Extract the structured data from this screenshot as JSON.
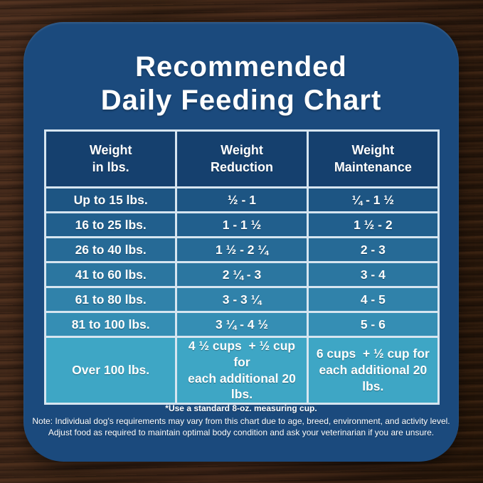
{
  "title": {
    "line1": "Recommended",
    "line2": "Daily Feeding Chart"
  },
  "table": {
    "headers": [
      "Weight\nin lbs.",
      "Weight\nReduction",
      "Weight\nMaintenance"
    ],
    "rows": [
      {
        "weight": "Up to 15 lbs.",
        "reduction": "½ - 1",
        "maintenance": "¼ - 1 ½"
      },
      {
        "weight": "16 to 25 lbs.",
        "reduction": "1 - 1 ½",
        "maintenance": "1 ½ - 2"
      },
      {
        "weight": "26 to 40 lbs.",
        "reduction": "1 ½ - 2 ¼",
        "maintenance": "2 - 3"
      },
      {
        "weight": "41 to 60 lbs.",
        "reduction": "2 ¼ - 3",
        "maintenance": "3 - 4"
      },
      {
        "weight": "61 to 80 lbs.",
        "reduction": "3 - 3 ¼",
        "maintenance": "4 - 5"
      },
      {
        "weight": "81 to 100 lbs.",
        "reduction": "3 ¼ - 4 ½",
        "maintenance": "5 - 6"
      },
      {
        "weight": "Over 100 lbs.",
        "reduction": "4 ½ cups  + ½ cup for\neach additional 20 lbs.",
        "maintenance": "6 cups  + ½ cup for\neach additional 20 lbs."
      }
    ],
    "row_colors": [
      "#1d5583",
      "#215f8d",
      "#266a96",
      "#2b76a0",
      "#3082aa",
      "#358eb4",
      "#3ea6c5"
    ]
  },
  "footnotes": {
    "measuring_cup": "*Use a standard 8-oz. measuring cup.",
    "note": "Note: Individual dog's requirements may vary from this chart due to age, breed, environment, and activity level.\nAdjust food as required to maintain optimal body condition and ask your veterinarian if you are unsure."
  },
  "colors": {
    "panel_background": "#1b4a7d",
    "header_cell_background": "#15406e",
    "table_border": "#d6e5f0",
    "text": "#ffffff",
    "wood_base": "#36200f"
  },
  "chart_data": {
    "type": "table",
    "title": "Recommended Daily Feeding Chart",
    "columns": [
      "Weight in lbs.",
      "Weight Reduction",
      "Weight Maintenance"
    ],
    "rows": [
      [
        "Up to 15 lbs.",
        "½ - 1",
        "¼ - 1 ½"
      ],
      [
        "16 to 25 lbs.",
        "1 - 1 ½",
        "1 ½ - 2"
      ],
      [
        "26 to 40 lbs.",
        "1 ½ - 2 ¼",
        "2 - 3"
      ],
      [
        "41 to 60 lbs.",
        "2 ¼ - 3",
        "3 - 4"
      ],
      [
        "61 to 80 lbs.",
        "3 - 3 ¼",
        "4 - 5"
      ],
      [
        "81 to 100 lbs.",
        "3 ¼ - 4 ½",
        "5 - 6"
      ],
      [
        "Over 100 lbs.",
        "4 ½ cups + ½ cup for each additional 20 lbs.",
        "6 cups + ½ cup for each additional 20 lbs."
      ]
    ],
    "footnote": "*Use a standard 8-oz. measuring cup.",
    "layout_hints": {
      "row_shading": "dark-blue to cyan gradient top to bottom",
      "grid": "on"
    }
  }
}
